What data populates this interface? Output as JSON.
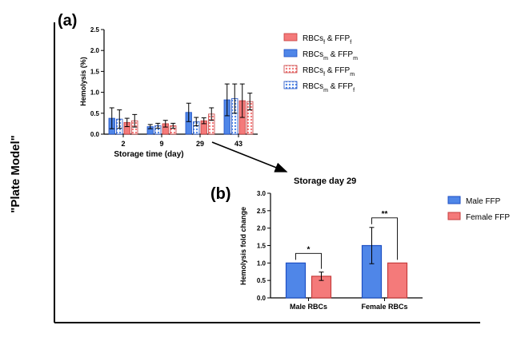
{
  "figure": {
    "side_label": "\"Plate Model\"",
    "arrow_label": "Storage day 29"
  },
  "colors": {
    "blue": "#4f86e8",
    "blue_edge": "#1d4fc4",
    "red": "#f47a7a",
    "red_edge": "#c63c3c",
    "axis": "#000000"
  },
  "chart_data": [
    {
      "panel_label": "(a)",
      "type": "bar",
      "ylabel": "Hemolysis (%)",
      "xlabel": "Storage time (day)",
      "ylim": [
        0,
        2.5
      ],
      "yticks": [
        "0.0",
        "0.5",
        "1.0",
        "1.5",
        "2.0",
        "2.5"
      ],
      "categories": [
        "2",
        "9",
        "29",
        "43"
      ],
      "legend_position": "right",
      "series": [
        {
          "name": "RBCsm & FFPm",
          "name_parts": [
            [
              "RBCs",
              ""
            ],
            [
              "m",
              "sub"
            ],
            [
              " & FFP",
              ""
            ],
            [
              "m",
              "sub"
            ]
          ],
          "color": "#4f86e8",
          "pattern": "solid",
          "values": [
            0.38,
            0.18,
            0.52,
            0.82
          ],
          "errors": [
            0.25,
            0.05,
            0.22,
            0.38
          ]
        },
        {
          "name": "RBCsm & FFPf",
          "name_parts": [
            [
              "RBCs",
              ""
            ],
            [
              "m",
              "sub"
            ],
            [
              " & FFP",
              ""
            ],
            [
              "f",
              "sub"
            ]
          ],
          "color": "#4f86e8",
          "pattern": "dots",
          "values": [
            0.36,
            0.2,
            0.3,
            0.85
          ],
          "errors": [
            0.22,
            0.06,
            0.1,
            0.35
          ]
        },
        {
          "name": "RBCsf & FFPf",
          "name_parts": [
            [
              "RBCs",
              ""
            ],
            [
              "f",
              "sub"
            ],
            [
              " & FFP",
              ""
            ],
            [
              "f",
              "sub"
            ]
          ],
          "color": "#f47a7a",
          "pattern": "solid",
          "values": [
            0.28,
            0.25,
            0.32,
            0.8
          ],
          "errors": [
            0.1,
            0.08,
            0.07,
            0.4
          ]
        },
        {
          "name": "RBCsf & FFPm",
          "name_parts": [
            [
              "RBCs",
              ""
            ],
            [
              "f",
              "sub"
            ],
            [
              " & FFP",
              ""
            ],
            [
              "m",
              "sub"
            ]
          ],
          "color": "#f47a7a",
          "pattern": "dots",
          "values": [
            0.32,
            0.2,
            0.48,
            0.78
          ],
          "errors": [
            0.15,
            0.06,
            0.15,
            0.2
          ]
        }
      ],
      "legend_order": [
        2,
        0,
        3,
        1
      ]
    },
    {
      "panel_label": "(b)",
      "type": "bar",
      "ylabel": "Hemolysis fold change",
      "ylim": [
        0,
        3.0
      ],
      "yticks": [
        "0.0",
        "0.5",
        "1.0",
        "1.5",
        "2.0",
        "2.5",
        "3.0"
      ],
      "categories": [
        "Male RBCs",
        "Female RBCs"
      ],
      "legend_position": "right",
      "series": [
        {
          "name": "Male FFP",
          "color": "#4f86e8",
          "values": [
            1.0,
            1.5
          ],
          "errors": [
            0,
            0.52
          ]
        },
        {
          "name": "Female FFP",
          "color": "#f47a7a",
          "values": [
            0.62,
            1.0
          ],
          "errors": [
            0.12,
            0
          ]
        }
      ],
      "significance": [
        "*",
        "**"
      ]
    }
  ]
}
